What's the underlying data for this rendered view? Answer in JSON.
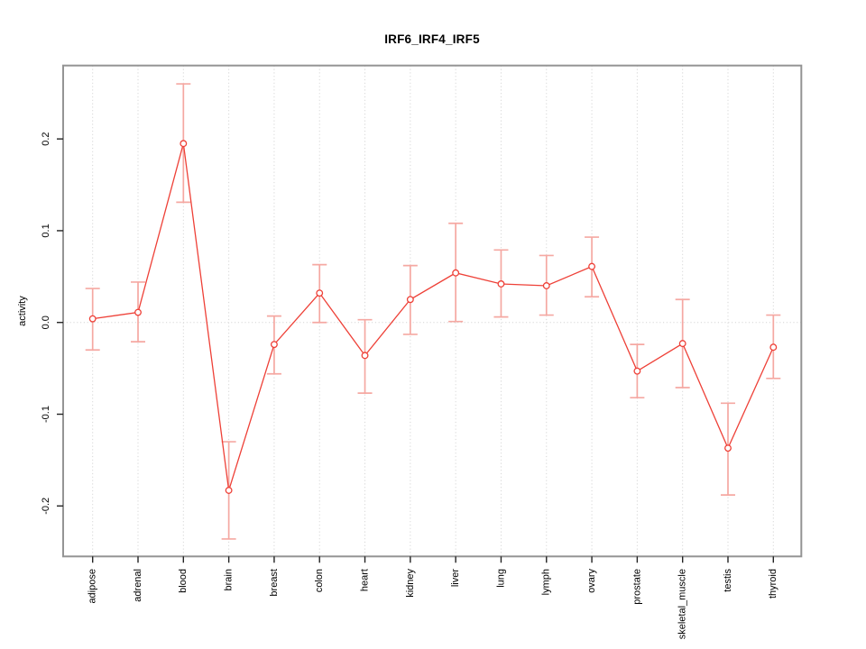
{
  "chart_data": {
    "type": "line",
    "title": "IRF6_IRF4_IRF5",
    "xlabel": "",
    "ylabel": "activity",
    "legend": "none",
    "point_marker": "open-circle",
    "grid": "vertical-dotted-per-category-plus-dotted-zero-line",
    "categories": [
      "adipose",
      "adrenal",
      "blood",
      "brain",
      "breast",
      "colon",
      "heart",
      "kidney",
      "liver",
      "lung",
      "lymph",
      "ovary",
      "prostate",
      "skeletal_muscle",
      "testis",
      "thyroid"
    ],
    "series": [
      {
        "name": "activity",
        "values": [
          0.004,
          0.011,
          0.195,
          -0.183,
          -0.024,
          0.032,
          -0.036,
          0.025,
          0.054,
          0.042,
          0.04,
          0.061,
          -0.053,
          -0.023,
          -0.137,
          -0.027
        ],
        "error_low": [
          -0.03,
          -0.021,
          0.131,
          -0.236,
          -0.056,
          0.0,
          -0.077,
          -0.013,
          0.001,
          0.006,
          0.008,
          0.028,
          -0.082,
          -0.071,
          -0.188,
          -0.061
        ],
        "error_high": [
          0.037,
          0.044,
          0.26,
          -0.13,
          0.007,
          0.063,
          0.003,
          0.062,
          0.108,
          0.079,
          0.073,
          0.093,
          -0.024,
          0.025,
          -0.088,
          0.008
        ]
      }
    ],
    "ylim": [
      -0.255,
      0.28
    ],
    "y_tick_values": [
      0.2,
      0.1,
      0.0,
      -0.1,
      -0.2
    ],
    "y_tick_labels": [
      "0.2",
      "0.1",
      "0.0",
      "-0.1",
      "-0.2"
    ],
    "colors": {
      "line": "#ee4037",
      "error_bar": "#f5a8a2",
      "grid": "#d6d6d6",
      "frame": "#949494",
      "tick": "#222222",
      "text": "#000000"
    }
  }
}
